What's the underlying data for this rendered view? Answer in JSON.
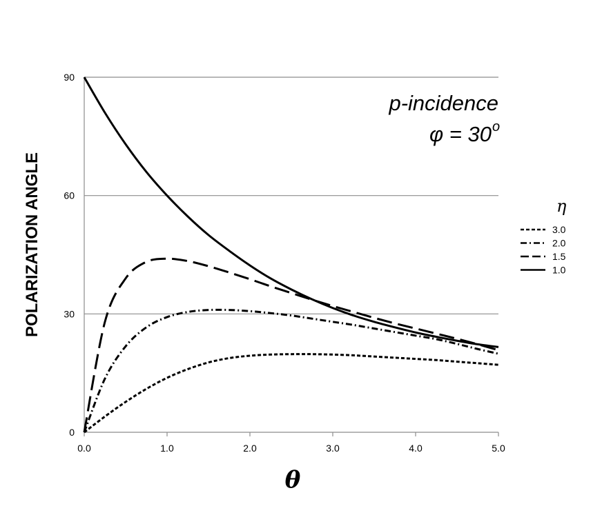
{
  "chart_data": {
    "type": "line",
    "title": "",
    "xlabel": "θ",
    "ylabel": "POLARIZATION ANGLE",
    "xlim": [
      0,
      5
    ],
    "ylim": [
      0,
      90
    ],
    "x_ticks": [
      "0.0",
      "1.0",
      "2.0",
      "3.0",
      "4.0",
      "5.0"
    ],
    "y_ticks": [
      "0",
      "30",
      "60",
      "90"
    ],
    "grid": "horizontal",
    "annotations": {
      "line1": "p-incidence",
      "line2_prefix": "φ = 30",
      "line2_sup": "o"
    },
    "legend": {
      "title": "η",
      "position": "right"
    },
    "x": [
      0.0,
      0.25,
      0.5,
      0.75,
      1.0,
      1.25,
      1.5,
      1.75,
      2.0,
      2.25,
      2.5,
      2.75,
      3.0,
      3.25,
      3.5,
      3.75,
      4.0,
      4.25,
      4.5,
      4.75,
      5.0
    ],
    "series": [
      {
        "name": "3.0",
        "dash": "short-dash",
        "values": [
          0.0,
          4.0,
          7.7,
          11.0,
          13.8,
          16.0,
          17.7,
          18.8,
          19.4,
          19.7,
          19.8,
          19.8,
          19.7,
          19.5,
          19.2,
          18.9,
          18.6,
          18.3,
          17.9,
          17.5,
          17.1
        ]
      },
      {
        "name": "2.0",
        "dash": "dash-dot",
        "values": [
          0.0,
          13.6,
          21.8,
          26.6,
          29.2,
          30.5,
          31.0,
          31.0,
          30.7,
          30.2,
          29.6,
          28.8,
          28.0,
          27.2,
          26.3,
          25.4,
          24.5,
          23.6,
          22.4,
          21.1,
          19.9
        ]
      },
      {
        "name": "1.5",
        "dash": "long-dash",
        "values": [
          0.0,
          28.0,
          39.0,
          43.2,
          44.0,
          43.4,
          42.1,
          40.5,
          38.8,
          37.0,
          35.3,
          33.6,
          32.0,
          30.5,
          29.0,
          27.6,
          26.3,
          25.0,
          23.7,
          22.3,
          20.8
        ]
      },
      {
        "name": "1.0",
        "dash": "solid",
        "values": [
          90.0,
          81.0,
          73.0,
          66.0,
          60.0,
          54.7,
          50.0,
          46.0,
          42.3,
          39.0,
          36.2,
          33.7,
          31.5,
          29.6,
          28.0,
          26.6,
          25.3,
          24.2,
          23.2,
          22.3,
          21.6
        ]
      }
    ]
  }
}
